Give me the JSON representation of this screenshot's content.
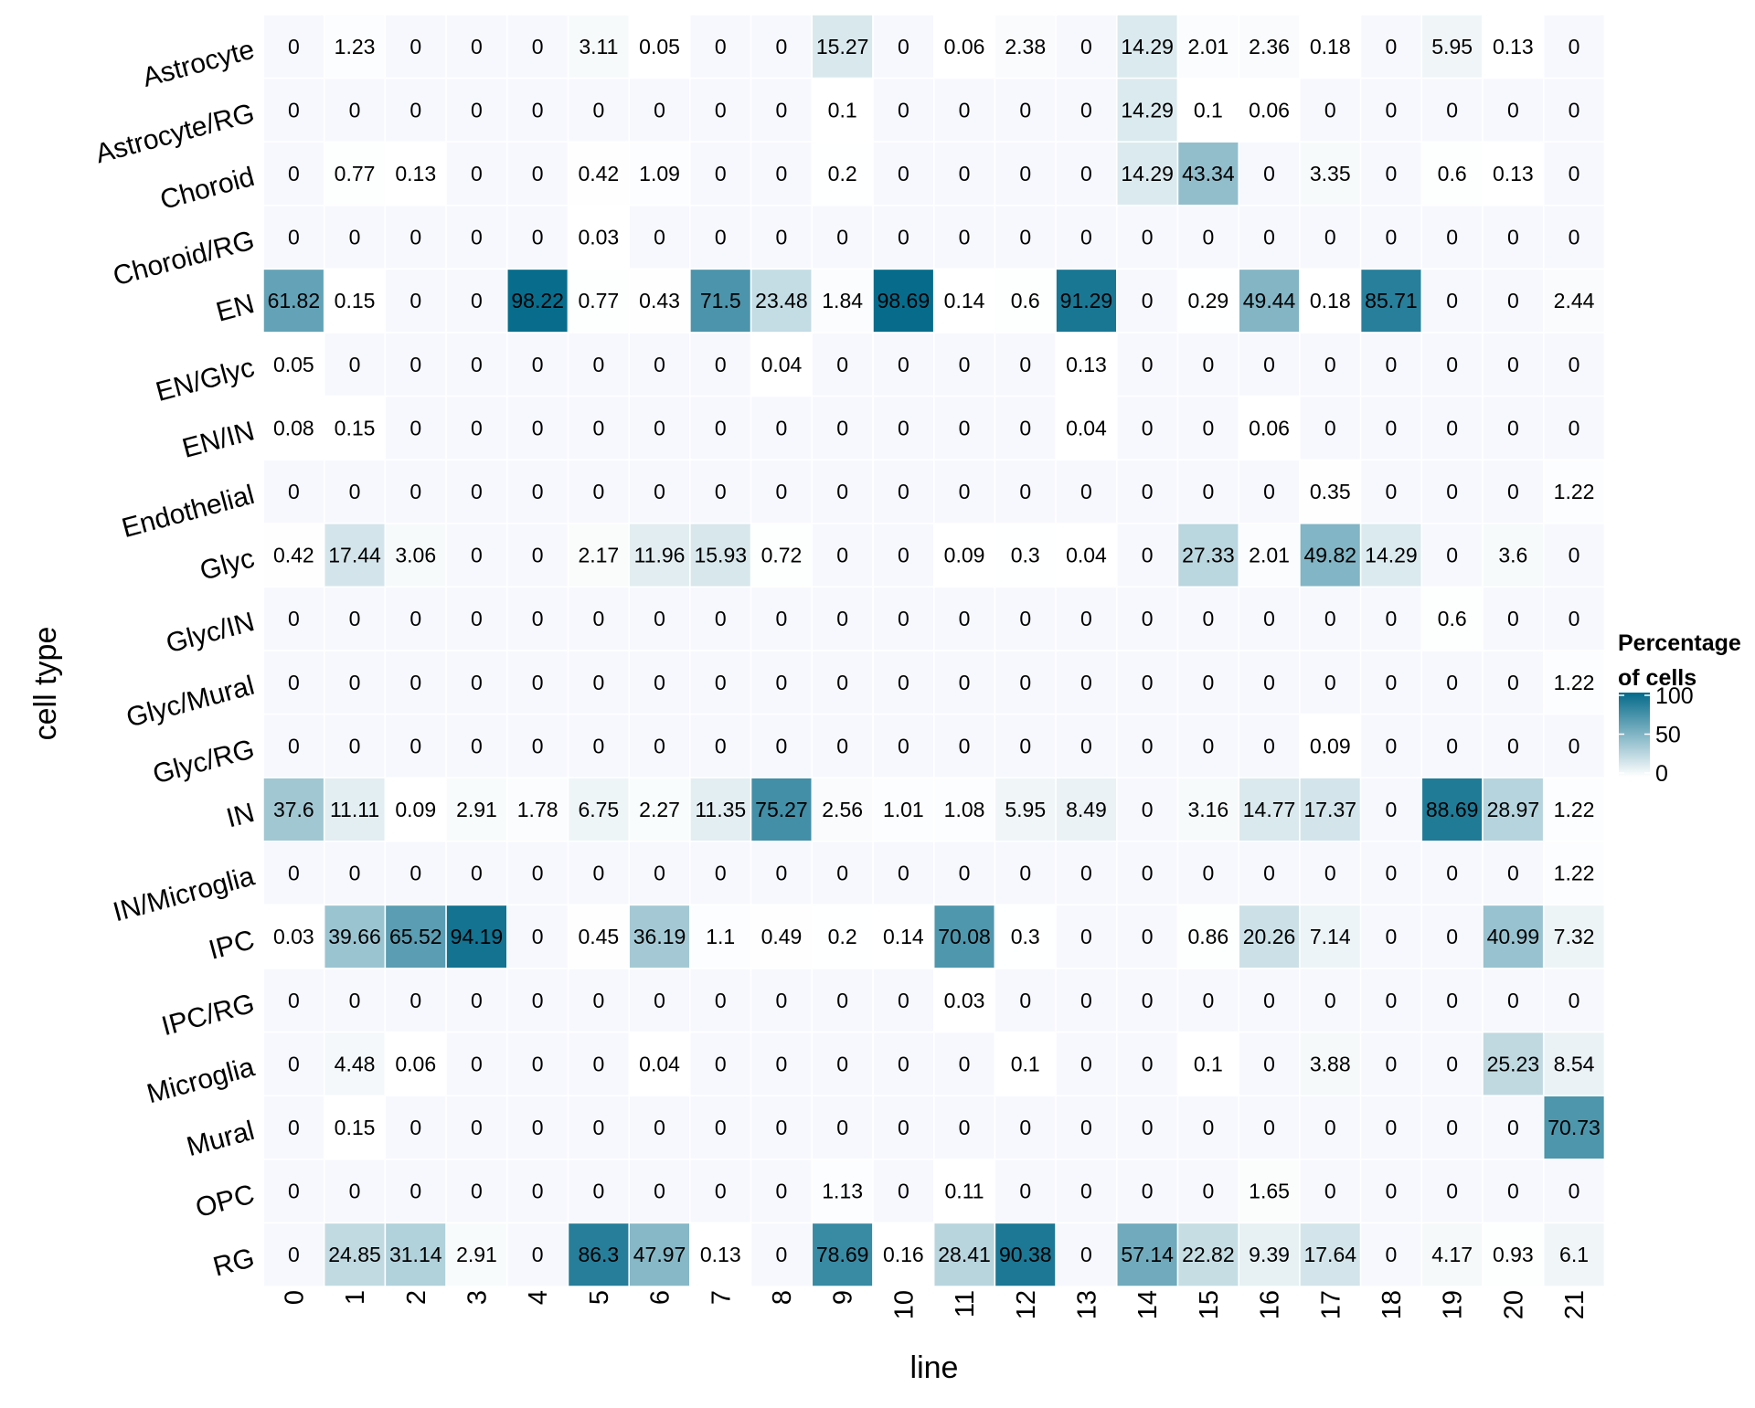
{
  "chart_data": {
    "type": "heatmap",
    "xlabel": "line",
    "ylabel": "cell type",
    "legend": {
      "title_lines": [
        "Percentage",
        "of cells"
      ],
      "ticks": [
        0,
        50,
        100
      ],
      "position": "right",
      "color_low": "#ffffff",
      "color_high": "#046a8a"
    },
    "grid_color": "#f7f8fe",
    "x_categories": [
      "0",
      "1",
      "2",
      "3",
      "4",
      "5",
      "6",
      "7",
      "8",
      "9",
      "10",
      "11",
      "12",
      "13",
      "14",
      "15",
      "16",
      "17",
      "18",
      "19",
      "20",
      "21"
    ],
    "y_categories": [
      "Astrocyte",
      "Astrocyte/RG",
      "Choroid",
      "Choroid/RG",
      "EN",
      "EN/Glyc",
      "EN/IN",
      "Endothelial",
      "Glyc",
      "Glyc/IN",
      "Glyc/Mural",
      "Glyc/RG",
      "IN",
      "IN/Microglia",
      "IPC",
      "IPC/RG",
      "Microglia",
      "Mural",
      "OPC",
      "RG"
    ],
    "values": [
      [
        0,
        1.23,
        0,
        0,
        0,
        3.11,
        0.05,
        0,
        0,
        15.27,
        0,
        0.06,
        2.38,
        0,
        14.29,
        2.01,
        2.36,
        0.18,
        0,
        5.95,
        0.13,
        0
      ],
      [
        0,
        0,
        0,
        0,
        0,
        0,
        0,
        0,
        0,
        0.1,
        0,
        0,
        0,
        0,
        14.29,
        0.1,
        0.06,
        0,
        0,
        0,
        0,
        0
      ],
      [
        0,
        0.77,
        0.13,
        0,
        0,
        0.42,
        1.09,
        0,
        0,
        0.2,
        0,
        0,
        0,
        0,
        14.29,
        43.34,
        0,
        3.35,
        0,
        0.6,
        0.13,
        0
      ],
      [
        0,
        0,
        0,
        0,
        0,
        0.03,
        0,
        0,
        0,
        0,
        0,
        0,
        0,
        0,
        0,
        0,
        0,
        0,
        0,
        0,
        0,
        0
      ],
      [
        61.82,
        0.15,
        0,
        0,
        98.22,
        0.77,
        0.43,
        71.5,
        23.48,
        1.84,
        98.69,
        0.14,
        0.6,
        91.29,
        0,
        0.29,
        49.44,
        0.18,
        85.71,
        0,
        0,
        2.44
      ],
      [
        0.05,
        0,
        0,
        0,
        0,
        0,
        0,
        0,
        0.04,
        0,
        0,
        0,
        0,
        0.13,
        0,
        0,
        0,
        0,
        0,
        0,
        0,
        0
      ],
      [
        0.08,
        0.15,
        0,
        0,
        0,
        0,
        0,
        0,
        0,
        0,
        0,
        0,
        0,
        0.04,
        0,
        0,
        0.06,
        0,
        0,
        0,
        0,
        0
      ],
      [
        0,
        0,
        0,
        0,
        0,
        0,
        0,
        0,
        0,
        0,
        0,
        0,
        0,
        0,
        0,
        0,
        0,
        0.35,
        0,
        0,
        0,
        1.22
      ],
      [
        0.42,
        17.44,
        3.06,
        0,
        0,
        2.17,
        11.96,
        15.93,
        0.72,
        0,
        0,
        0.09,
        0.3,
        0.04,
        0,
        27.33,
        2.01,
        49.82,
        14.29,
        0,
        3.6,
        0
      ],
      [
        0,
        0,
        0,
        0,
        0,
        0,
        0,
        0,
        0,
        0,
        0,
        0,
        0,
        0,
        0,
        0,
        0,
        0,
        0,
        0.6,
        0,
        0
      ],
      [
        0,
        0,
        0,
        0,
        0,
        0,
        0,
        0,
        0,
        0,
        0,
        0,
        0,
        0,
        0,
        0,
        0,
        0,
        0,
        0,
        0,
        1.22
      ],
      [
        0,
        0,
        0,
        0,
        0,
        0,
        0,
        0,
        0,
        0,
        0,
        0,
        0,
        0,
        0,
        0,
        0,
        0.09,
        0,
        0,
        0,
        0
      ],
      [
        37.6,
        11.11,
        0.09,
        2.91,
        1.78,
        6.75,
        2.27,
        11.35,
        75.27,
        2.56,
        1.01,
        1.08,
        5.95,
        8.49,
        0,
        3.16,
        14.77,
        17.37,
        0,
        88.69,
        28.97,
        1.22
      ],
      [
        0,
        0,
        0,
        0,
        0,
        0,
        0,
        0,
        0,
        0,
        0,
        0,
        0,
        0,
        0,
        0,
        0,
        0,
        0,
        0,
        0,
        1.22
      ],
      [
        0.03,
        39.66,
        65.52,
        94.19,
        0,
        0.45,
        36.19,
        1.1,
        0.49,
        0.2,
        0.14,
        70.08,
        0.3,
        0,
        0,
        0.86,
        20.26,
        7.14,
        0,
        0,
        40.99,
        7.32
      ],
      [
        0,
        0,
        0,
        0,
        0,
        0,
        0,
        0,
        0,
        0,
        0,
        0.03,
        0,
        0,
        0,
        0,
        0,
        0,
        0,
        0,
        0,
        0
      ],
      [
        0,
        4.48,
        0.06,
        0,
        0,
        0,
        0.04,
        0,
        0,
        0,
        0,
        0,
        0.1,
        0,
        0,
        0.1,
        0,
        3.88,
        0,
        0,
        25.23,
        8.54
      ],
      [
        0,
        0.15,
        0,
        0,
        0,
        0,
        0,
        0,
        0,
        0,
        0,
        0,
        0,
        0,
        0,
        0,
        0,
        0,
        0,
        0,
        0,
        70.73
      ],
      [
        0,
        0,
        0,
        0,
        0,
        0,
        0,
        0,
        0,
        1.13,
        0,
        0.11,
        0,
        0,
        0,
        0,
        1.65,
        0,
        0,
        0,
        0,
        0
      ],
      [
        0,
        24.85,
        31.14,
        2.91,
        0,
        86.3,
        47.97,
        0.13,
        0,
        78.69,
        0.16,
        28.41,
        90.38,
        0,
        57.14,
        22.82,
        9.39,
        17.64,
        0,
        4.17,
        0.93,
        6.1
      ]
    ]
  }
}
